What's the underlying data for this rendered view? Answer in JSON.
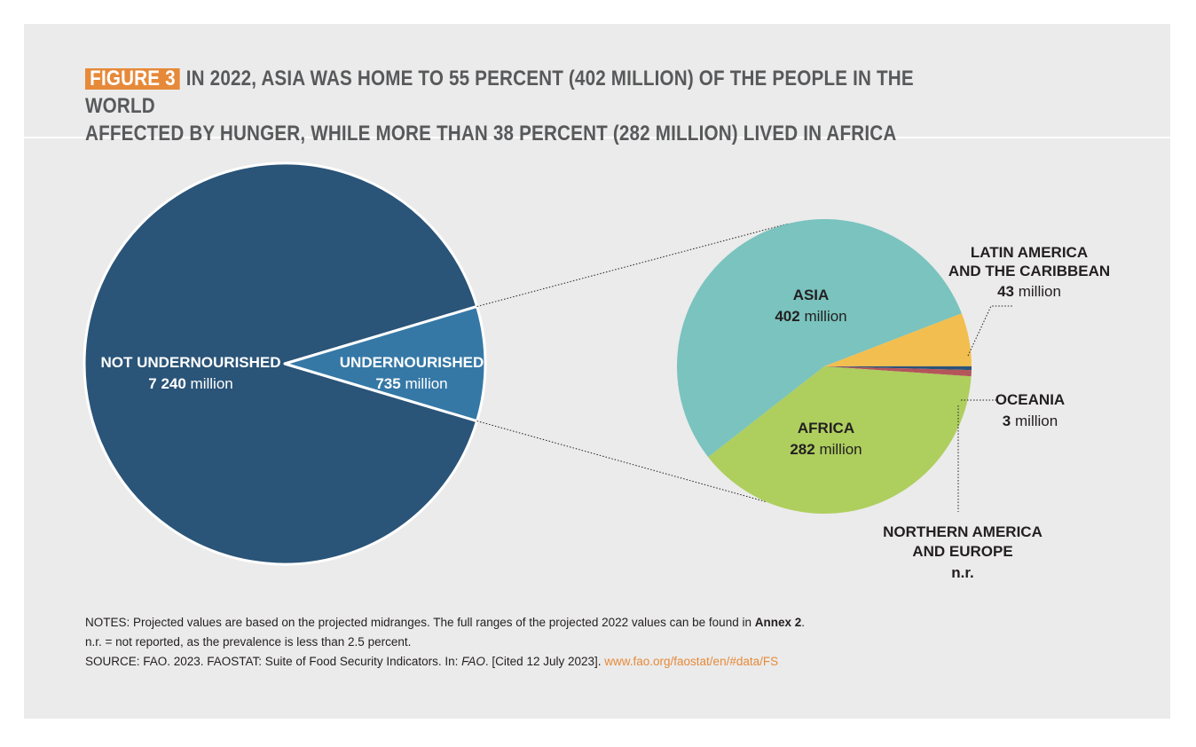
{
  "figure": {
    "label": "FIGURE 3",
    "title_line1": "IN 2022, ASIA WAS HOME TO 55 PERCENT (402 MILLION) OF THE PEOPLE IN THE WORLD",
    "title_line2": "AFFECTED BY HUNGER, WHILE MORE THAN 38 PERCENT (282 MILLION) LIVED IN AFRICA"
  },
  "colors": {
    "not_undernourished": "#2a5478",
    "undernourished": "#3578a6",
    "asia": "#7ac3be",
    "africa": "#aece5e",
    "latin_america": "#f2be4f",
    "oceania": "#2a5478",
    "northern_america_europe": "#b4555a",
    "accent": "#e68a3a"
  },
  "chart_data": [
    {
      "type": "pie",
      "title": "",
      "slices": [
        {
          "key": "not_undernourished",
          "label": "NOT UNDERNOURISHED",
          "value": 7240,
          "value_text": "7 240",
          "unit": "million"
        },
        {
          "key": "undernourished",
          "label": "UNDERNOURISHED",
          "value": 735,
          "value_text": "735",
          "unit": "million"
        }
      ]
    },
    {
      "type": "pie",
      "title": "",
      "slices": [
        {
          "key": "asia",
          "label": "ASIA",
          "value": 402,
          "value_text": "402",
          "unit": "million"
        },
        {
          "key": "latin_america",
          "label_line1": "LATIN AMERICA",
          "label_line2": "AND THE CARIBBEAN",
          "value": 43,
          "value_text": "43",
          "unit": "million"
        },
        {
          "key": "oceania",
          "label": "OCEANIA",
          "value": 3,
          "value_text": "3",
          "unit": "million"
        },
        {
          "key": "northern_america_europe",
          "label_line1": "NORTHERN AMERICA",
          "label_line2": "AND EUROPE",
          "value": 5,
          "value_text": "n.r."
        },
        {
          "key": "africa",
          "label": "AFRICA",
          "value": 282,
          "value_text": "282",
          "unit": "million"
        }
      ]
    }
  ],
  "notes": {
    "line1_text": "NOTES: Projected values are based on the projected midranges. The full ranges of the projected 2022 values can be found in ",
    "line1_bold": "Annex 2",
    "line1_end": ".",
    "line2": "n.r. = not reported, as the prevalence is less than 2.5 percent.",
    "line3_text": "SOURCE: FAO. 2023. FAOSTAT: Suite of Food Security Indicators. In: ",
    "line3_italic": "FAO",
    "line3_mid": ". [Cited 12 July 2023]. ",
    "line3_link": "www.fao.org/faostat/en/#data/FS"
  }
}
